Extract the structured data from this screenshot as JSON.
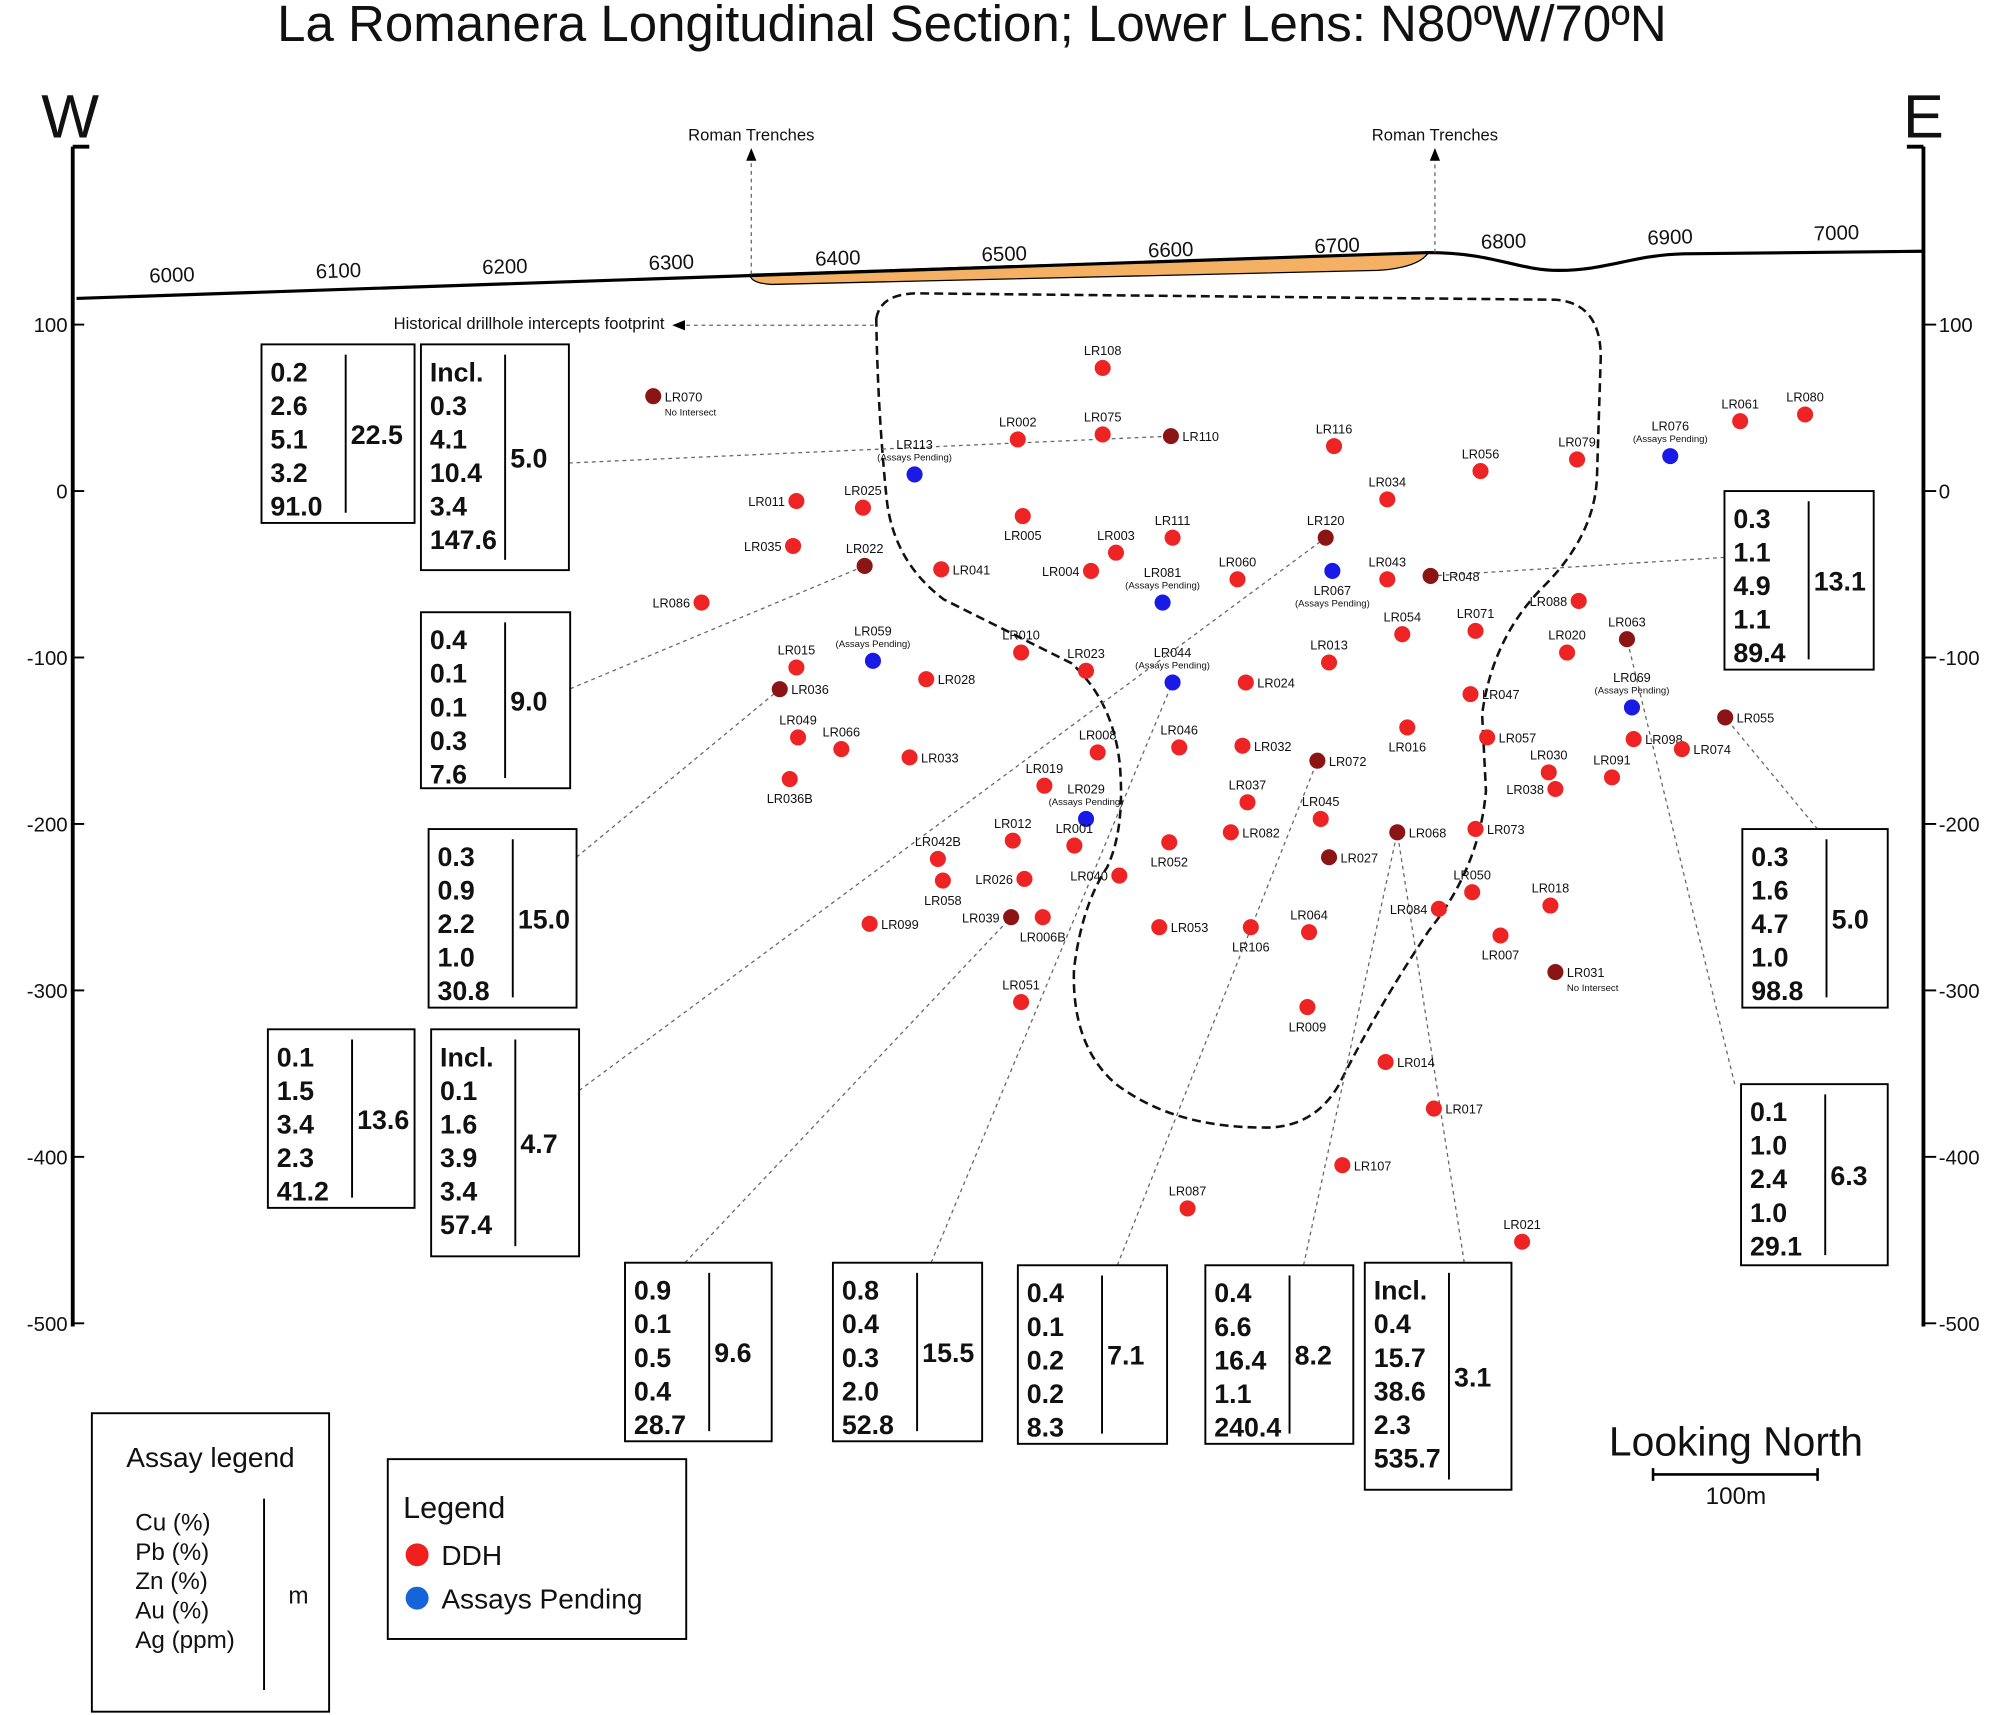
{
  "title": "La Romanera Longitudinal Section; Lower Lens: N80ºW/70ºN",
  "west": "W",
  "east": "E",
  "elevation_ticks": [
    100,
    0,
    -100,
    -200,
    -300,
    -400,
    -500
  ],
  "easting_ticks": [
    6000,
    6100,
    6200,
    6300,
    6400,
    6500,
    6600,
    6700,
    6800,
    6900,
    7000
  ],
  "roman_trenches": [
    "Roman Trenches",
    "Roman Trenches"
  ],
  "footprint_label": "Historical drillhole intercepts footprint",
  "drillholes": [
    {
      "label": "LR108",
      "easting": 6559,
      "elevation": 74,
      "color": "#ee2424"
    },
    {
      "label": "LR070",
      "easting": 6289,
      "elevation": 57,
      "color": "#8b1414",
      "note": "No Intersect"
    },
    {
      "label": "LR002",
      "easting": 6508,
      "elevation": 31,
      "color": "#ee2424"
    },
    {
      "label": "LR075",
      "easting": 6559,
      "elevation": 34,
      "color": "#ee2424"
    },
    {
      "label": "LR110",
      "easting": 6600,
      "elevation": 33,
      "color": "#8b1414"
    },
    {
      "label": "LR113",
      "easting": 6446,
      "elevation": 10,
      "color": "#1a1ae6",
      "note": "(Assays Pending)"
    },
    {
      "label": "LR116",
      "easting": 6698,
      "elevation": 27,
      "color": "#ee2424"
    },
    {
      "label": "LR056",
      "easting": 6786,
      "elevation": 12,
      "color": "#ee2424"
    },
    {
      "label": "LR079",
      "easting": 6844,
      "elevation": 19,
      "color": "#ee2424"
    },
    {
      "label": "LR076",
      "easting": 6900,
      "elevation": 21,
      "color": "#1a1ae6",
      "note": "(Assays Pending)"
    },
    {
      "label": "LR061",
      "easting": 6942,
      "elevation": 42,
      "color": "#ee2424"
    },
    {
      "label": "LR080",
      "easting": 6981,
      "elevation": 46,
      "color": "#ee2424"
    },
    {
      "label": "LR011",
      "easting": 6375,
      "elevation": -6,
      "color": "#ee2424"
    },
    {
      "label": "LR025",
      "easting": 6415,
      "elevation": -10,
      "color": "#ee2424"
    },
    {
      "label": "LR034",
      "easting": 6730,
      "elevation": -5,
      "color": "#ee2424"
    },
    {
      "label": "LR005",
      "easting": 6511,
      "elevation": -15,
      "color": "#ee2424"
    },
    {
      "label": "LR111",
      "easting": 6601,
      "elevation": -28,
      "color": "#ee2424"
    },
    {
      "label": "LR003",
      "easting": 6567,
      "elevation": -37,
      "color": "#ee2424"
    },
    {
      "label": "LR120",
      "easting": 6693,
      "elevation": -28,
      "color": "#8b1414"
    },
    {
      "label": "LR035",
      "easting": 6373,
      "elevation": -33,
      "color": "#ee2424"
    },
    {
      "label": "LR022",
      "easting": 6416,
      "elevation": -45,
      "color": "#8b1414"
    },
    {
      "label": "LR041",
      "easting": 6462,
      "elevation": -47,
      "color": "#ee2424"
    },
    {
      "label": "LR004",
      "easting": 6552,
      "elevation": -48,
      "color": "#ee2424"
    },
    {
      "label": "LR081",
      "easting": 6595,
      "elevation": -67,
      "color": "#1a1ae6",
      "note": "(Assays Pending)"
    },
    {
      "label": "LR060",
      "easting": 6640,
      "elevation": -53,
      "color": "#ee2424"
    },
    {
      "label": "LR067",
      "easting": 6697,
      "elevation": -48,
      "color": "#1a1ae6",
      "note": "(Assays Pending)"
    },
    {
      "label": "LR043",
      "easting": 6730,
      "elevation": -53,
      "color": "#ee2424"
    },
    {
      "label": "LR048",
      "easting": 6756,
      "elevation": -51,
      "color": "#8b1414"
    },
    {
      "label": "LR088",
      "easting": 6845,
      "elevation": -66,
      "color": "#ee2424"
    },
    {
      "label": "LR086",
      "easting": 6318,
      "elevation": -67,
      "color": "#ee2424"
    },
    {
      "label": "LR054",
      "easting": 6739,
      "elevation": -86,
      "color": "#ee2424"
    },
    {
      "label": "LR071",
      "easting": 6783,
      "elevation": -84,
      "color": "#ee2424"
    },
    {
      "label": "LR063",
      "easting": 6874,
      "elevation": -89,
      "color": "#8b1414"
    },
    {
      "label": "LR020",
      "easting": 6838,
      "elevation": -97,
      "color": "#ee2424"
    },
    {
      "label": "LR010",
      "easting": 6510,
      "elevation": -97,
      "color": "#ee2424"
    },
    {
      "label": "LR023",
      "easting": 6549,
      "elevation": -108,
      "color": "#ee2424"
    },
    {
      "label": "LR013",
      "easting": 6695,
      "elevation": -103,
      "color": "#ee2424"
    },
    {
      "label": "LR015",
      "easting": 6375,
      "elevation": -106,
      "color": "#ee2424"
    },
    {
      "label": "LR059",
      "easting": 6421,
      "elevation": -102,
      "color": "#1a1ae6",
      "note": "(Assays Pending)"
    },
    {
      "label": "LR028",
      "easting": 6453,
      "elevation": -113,
      "color": "#ee2424"
    },
    {
      "label": "LR044",
      "easting": 6601,
      "elevation": -115,
      "color": "#1a1ae6",
      "note": "(Assays Pending)"
    },
    {
      "label": "LR024",
      "easting": 6645,
      "elevation": -115,
      "color": "#ee2424"
    },
    {
      "label": "LR036",
      "easting": 6365,
      "elevation": -119,
      "color": "#8b1414"
    },
    {
      "label": "LR047",
      "easting": 6780,
      "elevation": -122,
      "color": "#ee2424"
    },
    {
      "label": "LR069",
      "easting": 6877,
      "elevation": -130,
      "color": "#1a1ae6",
      "note": "(Assays Pending)"
    },
    {
      "label": "LR055",
      "easting": 6933,
      "elevation": -136,
      "color": "#8b1414"
    },
    {
      "label": "LR016",
      "easting": 6742,
      "elevation": -142,
      "color": "#ee2424"
    },
    {
      "label": "LR057",
      "easting": 6790,
      "elevation": -148,
      "color": "#ee2424"
    },
    {
      "label": "LR098",
      "easting": 6878,
      "elevation": -149,
      "color": "#ee2424"
    },
    {
      "label": "LR074",
      "easting": 6907,
      "elevation": -155,
      "color": "#ee2424"
    },
    {
      "label": "LR049",
      "easting": 6376,
      "elevation": -148,
      "color": "#ee2424"
    },
    {
      "label": "LR066",
      "easting": 6402,
      "elevation": -155,
      "color": "#ee2424"
    },
    {
      "label": "LR008",
      "easting": 6556,
      "elevation": -157,
      "color": "#ee2424"
    },
    {
      "label": "LR046",
      "easting": 6605,
      "elevation": -154,
      "color": "#ee2424"
    },
    {
      "label": "LR032",
      "easting": 6643,
      "elevation": -153,
      "color": "#ee2424"
    },
    {
      "label": "LR072",
      "easting": 6688,
      "elevation": -162,
      "color": "#8b1414"
    },
    {
      "label": "LR033",
      "easting": 6443,
      "elevation": -160,
      "color": "#ee2424"
    },
    {
      "label": "LR030",
      "easting": 6827,
      "elevation": -169,
      "color": "#ee2424"
    },
    {
      "label": "LR091",
      "easting": 6865,
      "elevation": -172,
      "color": "#ee2424"
    },
    {
      "label": "LR038",
      "easting": 6831,
      "elevation": -179,
      "color": "#ee2424"
    },
    {
      "label": "LR036B",
      "easting": 6371,
      "elevation": -173,
      "color": "#ee2424"
    },
    {
      "label": "LR019",
      "easting": 6524,
      "elevation": -177,
      "color": "#ee2424"
    },
    {
      "label": "LR037",
      "easting": 6646,
      "elevation": -187,
      "color": "#ee2424"
    },
    {
      "label": "LR045",
      "easting": 6690,
      "elevation": -197,
      "color": "#ee2424"
    },
    {
      "label": "LR029",
      "easting": 6549,
      "elevation": -197,
      "color": "#1a1ae6",
      "note": "(Assays Pending)"
    },
    {
      "label": "LR068",
      "easting": 6736,
      "elevation": -205,
      "color": "#8b1414"
    },
    {
      "label": "LR073",
      "easting": 6783,
      "elevation": -203,
      "color": "#ee2424"
    },
    {
      "label": "LR082",
      "easting": 6636,
      "elevation": -205,
      "color": "#ee2424"
    },
    {
      "label": "LR012",
      "easting": 6505,
      "elevation": -210,
      "color": "#ee2424"
    },
    {
      "label": "LR001",
      "easting": 6542,
      "elevation": -213,
      "color": "#ee2424"
    },
    {
      "label": "LR052",
      "easting": 6599,
      "elevation": -211,
      "color": "#ee2424"
    },
    {
      "label": "LR027",
      "easting": 6695,
      "elevation": -220,
      "color": "#8b1414"
    },
    {
      "label": "LR042B",
      "easting": 6460,
      "elevation": -221,
      "color": "#ee2424"
    },
    {
      "label": "LR040",
      "easting": 6569,
      "elevation": -231,
      "color": "#ee2424"
    },
    {
      "label": "LR026",
      "easting": 6512,
      "elevation": -233,
      "color": "#ee2424"
    },
    {
      "label": "LR058",
      "easting": 6463,
      "elevation": -234,
      "color": "#ee2424"
    },
    {
      "label": "LR050",
      "easting": 6781,
      "elevation": -241,
      "color": "#ee2424"
    },
    {
      "label": "LR018",
      "easting": 6828,
      "elevation": -249,
      "color": "#ee2424"
    },
    {
      "label": "LR084",
      "easting": 6761,
      "elevation": -251,
      "color": "#ee2424"
    },
    {
      "label": "LR039",
      "easting": 6504,
      "elevation": -256,
      "color": "#8b1414"
    },
    {
      "label": "LR006B",
      "easting": 6523,
      "elevation": -256,
      "color": "#ee2424"
    },
    {
      "label": "LR099",
      "easting": 6419,
      "elevation": -260,
      "color": "#ee2424"
    },
    {
      "label": "LR053",
      "easting": 6593,
      "elevation": -262,
      "color": "#ee2424"
    },
    {
      "label": "LR106",
      "easting": 6648,
      "elevation": -262,
      "color": "#ee2424"
    },
    {
      "label": "LR064",
      "easting": 6683,
      "elevation": -265,
      "color": "#ee2424"
    },
    {
      "label": "LR007",
      "easting": 6798,
      "elevation": -267,
      "color": "#ee2424"
    },
    {
      "label": "LR031",
      "easting": 6831,
      "elevation": -289,
      "color": "#8b1414",
      "note": "No Intersect"
    },
    {
      "label": "LR051",
      "easting": 6510,
      "elevation": -307,
      "color": "#ee2424"
    },
    {
      "label": "LR009",
      "easting": 6682,
      "elevation": -310,
      "color": "#ee2424"
    },
    {
      "label": "LR014",
      "easting": 6729,
      "elevation": -343,
      "color": "#ee2424"
    },
    {
      "label": "LR017",
      "easting": 6758,
      "elevation": -371,
      "color": "#ee2424"
    },
    {
      "label": "LR107",
      "easting": 6703,
      "elevation": -405,
      "color": "#ee2424"
    },
    {
      "label": "LR087",
      "easting": 6610,
      "elevation": -431,
      "color": "#ee2424"
    },
    {
      "label": "LR021",
      "easting": 6811,
      "elevation": -451,
      "color": "#ee2424"
    }
  ],
  "assay_boxes": [
    {
      "values": [
        "0.2",
        "2.6",
        "5.1",
        "3.2",
        "91.0"
      ],
      "width": "22.5"
    },
    {
      "header": "Incl.",
      "values": [
        "0.3",
        "4.1",
        "10.4",
        "3.4",
        "147.6"
      ],
      "width": "5.0"
    },
    {
      "values": [
        "0.4",
        "0.1",
        "0.1",
        "0.3",
        "7.6"
      ],
      "width": "9.0"
    },
    {
      "values": [
        "0.3",
        "0.9",
        "2.2",
        "1.0",
        "30.8"
      ],
      "width": "15.0"
    },
    {
      "values": [
        "0.1",
        "1.5",
        "3.4",
        "2.3",
        "41.2"
      ],
      "width": "13.6"
    },
    {
      "header": "Incl.",
      "values": [
        "0.1",
        "1.6",
        "3.9",
        "3.4",
        "57.4"
      ],
      "width": "4.7"
    },
    {
      "values": [
        "0.9",
        "0.1",
        "0.5",
        "0.4",
        "28.7"
      ],
      "width": "9.6"
    },
    {
      "values": [
        "0.8",
        "0.4",
        "0.3",
        "2.0",
        "52.8"
      ],
      "width": "15.5"
    },
    {
      "values": [
        "0.4",
        "0.1",
        "0.2",
        "0.2",
        "8.3"
      ],
      "width": "7.1"
    },
    {
      "values": [
        "0.4",
        "6.6",
        "16.4",
        "1.1",
        "240.4"
      ],
      "width": "8.2"
    },
    {
      "header": "Incl.",
      "values": [
        "0.4",
        "15.7",
        "38.6",
        "2.3",
        "535.7"
      ],
      "width": "3.1"
    },
    {
      "values": [
        "0.3",
        "1.1",
        "4.9",
        "1.1",
        "89.4"
      ],
      "width": "13.1"
    },
    {
      "values": [
        "0.3",
        "1.6",
        "4.7",
        "1.0",
        "98.8"
      ],
      "width": "5.0"
    },
    {
      "values": [
        "0.1",
        "1.0",
        "2.4",
        "1.0",
        "29.1"
      ],
      "width": "6.3"
    }
  ],
  "assay_legend": {
    "title": "Assay legend",
    "items": [
      "Cu (%)",
      "Pb (%)",
      "Zn (%)",
      "Au (%)",
      "Ag (ppm)"
    ],
    "unit": "m"
  },
  "legend": {
    "title": "Legend",
    "items": [
      {
        "label": "DDH",
        "color": "#f0201e"
      },
      {
        "label": "Assays Pending",
        "color": "#1665d8"
      }
    ]
  },
  "view": "Looking North",
  "scale_bar": "100m"
}
